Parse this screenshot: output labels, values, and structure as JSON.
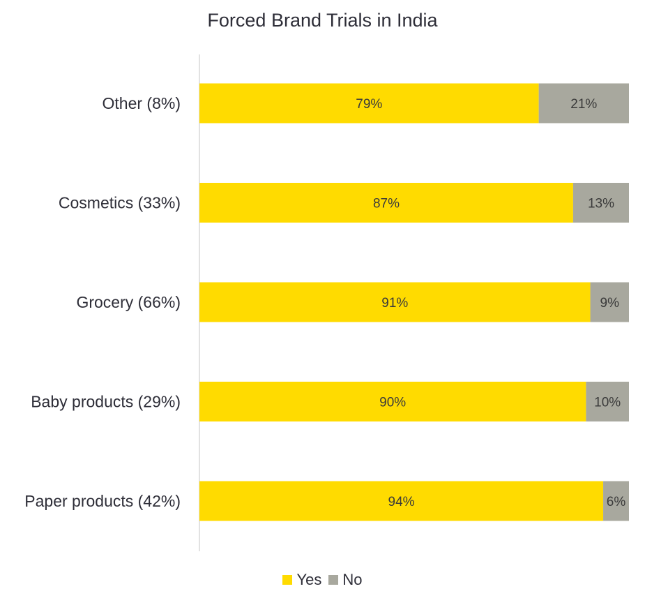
{
  "chart_data": {
    "type": "bar",
    "orientation": "horizontal",
    "stacked": true,
    "percent_stacked": true,
    "title": "Forced Brand Trials in India",
    "categories": [
      "Other (8%)",
      "Cosmetics (33%)",
      "Grocery (66%)",
      "Baby products (29%)",
      "Paper products (42%)"
    ],
    "series": [
      {
        "name": "Yes",
        "values": [
          79,
          87,
          91,
          90,
          94
        ],
        "labels": [
          "79%",
          "87%",
          "91%",
          "90%",
          "94%"
        ],
        "color": "#FFDB00"
      },
      {
        "name": "No",
        "values": [
          21,
          13,
          9,
          10,
          6
        ],
        "labels": [
          "21%",
          "13%",
          "9%",
          "10%",
          "6%"
        ],
        "color": "#A8A89E"
      }
    ],
    "xlim": [
      0,
      100
    ],
    "grid": false,
    "legend_position": "bottom"
  }
}
